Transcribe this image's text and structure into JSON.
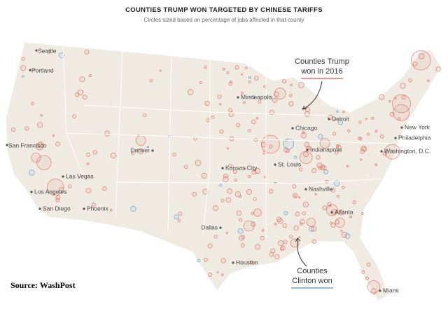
{
  "header": {
    "title": "COUNTIES TRUMP WON TARGETED BY CHINESE TARIFFS",
    "subtitle": "Circles sized based on percentage of jobs affected in that county"
  },
  "cities": [
    "Seattle",
    "Portland",
    "San Francisco",
    "Las Vegas",
    "Los Angeles",
    "San Diego",
    "Phoenix",
    "Denver",
    "Minneapolis",
    "Detroit",
    "Chicago",
    "Indianapolis",
    "Kansas City",
    "St. Louis",
    "Nashville",
    "Atlanta",
    "Dallas",
    "Houston",
    "Miami",
    "New York",
    "Philadelphia",
    "Washington, D.C."
  ],
  "annotations": {
    "trump": [
      "Counties Trump",
      "won in 2016"
    ],
    "clinton": [
      "Counties",
      "Clinton won"
    ]
  },
  "source": "Source: WashPost"
}
